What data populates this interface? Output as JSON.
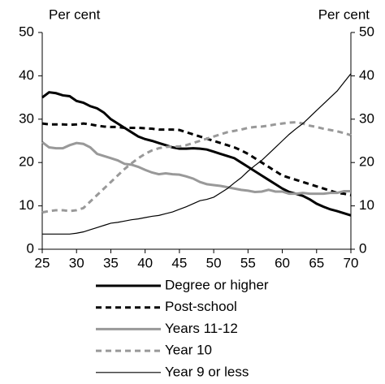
{
  "chart_data": {
    "type": "line",
    "y_label": "Per cent",
    "y2_label": "Per cent",
    "x": [
      25,
      26,
      27,
      28,
      29,
      30,
      31,
      32,
      33,
      34,
      35,
      36,
      37,
      38,
      39,
      40,
      41,
      42,
      43,
      44,
      45,
      46,
      47,
      48,
      49,
      50,
      51,
      52,
      53,
      54,
      55,
      56,
      57,
      58,
      59,
      60,
      61,
      62,
      63,
      64,
      65,
      66,
      67,
      68,
      69,
      70
    ],
    "xlim": [
      25,
      70
    ],
    "xticks": [
      25,
      30,
      35,
      40,
      45,
      50,
      55,
      60,
      65,
      70
    ],
    "ylim": [
      0,
      50
    ],
    "yticks": [
      0,
      10,
      20,
      30,
      40,
      50
    ],
    "y2lim": [
      0,
      50
    ],
    "y2ticks": [
      0,
      10,
      20,
      30,
      40,
      50
    ],
    "series": [
      {
        "name": "Degree or higher",
        "color": "#000000",
        "width": 3,
        "dash": "none",
        "values": [
          35,
          36.2,
          36,
          35.5,
          35.3,
          34.2,
          33.8,
          33,
          32.5,
          31.5,
          30,
          29,
          28,
          27,
          26,
          25.4,
          25,
          24.5,
          24,
          23.5,
          23.2,
          23.2,
          23.3,
          23.2,
          23,
          22.5,
          22,
          21.5,
          21,
          20,
          19,
          18,
          17,
          16,
          15,
          14,
          13.2,
          12.8,
          12.3,
          11.5,
          10.5,
          9.8,
          9.2,
          8.8,
          8.3,
          7.8
        ]
      },
      {
        "name": "Post-school",
        "color": "#000000",
        "width": 3,
        "dash": "7 5",
        "values": [
          29,
          28.8,
          28.8,
          28.8,
          28.7,
          28.8,
          29,
          28.8,
          28.5,
          28.3,
          28.2,
          28.2,
          28,
          28,
          28,
          27.9,
          27.8,
          27.6,
          27.6,
          27.6,
          27.5,
          27,
          26.5,
          26,
          25.5,
          25,
          24.5,
          24,
          23.5,
          22.8,
          22,
          21,
          20,
          19,
          18,
          17,
          16.5,
          16,
          15.5,
          15,
          14.5,
          14,
          13.5,
          13,
          12.8,
          12.5
        ]
      },
      {
        "name": "Years 11-12",
        "color": "#999999",
        "width": 3,
        "dash": "none",
        "values": [
          24.7,
          23.5,
          23.3,
          23.3,
          24,
          24.5,
          24.3,
          23.5,
          22,
          21.5,
          21,
          20.5,
          19.7,
          19.5,
          19,
          18.3,
          17.7,
          17.3,
          17.5,
          17.3,
          17.2,
          16.8,
          16.3,
          15.5,
          15,
          14.8,
          14.6,
          14.3,
          14,
          13.7,
          13.5,
          13.2,
          13.3,
          13.7,
          13.3,
          13.3,
          12.8,
          12.8,
          13,
          12.8,
          12.8,
          12.8,
          13,
          13,
          13.4,
          13.4
        ]
      },
      {
        "name": "Year 10",
        "color": "#999999",
        "width": 3,
        "dash": "7 5",
        "values": [
          8.5,
          8.8,
          9,
          9,
          8.8,
          9,
          9.5,
          11,
          12.5,
          14,
          15.5,
          17,
          18.5,
          19.8,
          21,
          22,
          22.8,
          23.3,
          23.6,
          23.7,
          23.7,
          24,
          24.5,
          25,
          25.5,
          26,
          26.5,
          27,
          27.3,
          27.6,
          28,
          28.2,
          28.3,
          28.5,
          28.8,
          29,
          29.2,
          29.3,
          29,
          28.5,
          28.2,
          27.8,
          27.5,
          27.2,
          26.8,
          26.3
        ]
      },
      {
        "name": "Year 9 or less",
        "color": "#000000",
        "width": 1.2,
        "dash": "none",
        "values": [
          3.5,
          3.5,
          3.5,
          3.5,
          3.5,
          3.7,
          4,
          4.5,
          5,
          5.5,
          6,
          6.2,
          6.5,
          6.8,
          7,
          7.3,
          7.6,
          7.8,
          8.2,
          8.6,
          9.2,
          9.8,
          10.5,
          11.2,
          11.5,
          12,
          13,
          14,
          15.3,
          16.5,
          18,
          19.3,
          20.5,
          22,
          23.5,
          25,
          26.5,
          27.8,
          29,
          30.5,
          32,
          33.5,
          35,
          36.5,
          38.5,
          40.5
        ]
      }
    ]
  }
}
